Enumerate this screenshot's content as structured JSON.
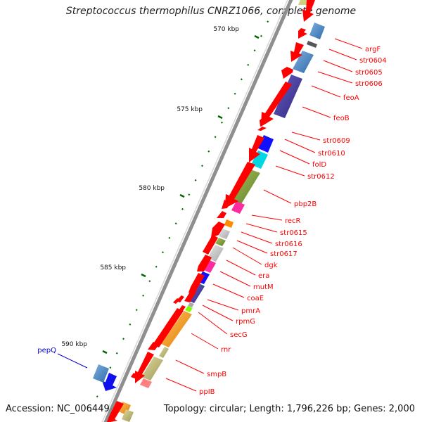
{
  "title": "Streptococcus thermophilus CNRZ1066, complete genome",
  "accession": "Accession: NC_006449",
  "summary": "Topology: circular; Length: 1,796,226 bp; Genes: 2,000",
  "colors": {
    "forward_gene": "#ff0000",
    "reverse_gene_label": "#0000cc",
    "label_line": "#ff0000",
    "backbone": "#999999",
    "tick": "#006600"
  },
  "ruler": [
    {
      "kbp": 570,
      "label": "570 kbp"
    },
    {
      "kbp": 575,
      "label": "575 kbp"
    },
    {
      "kbp": 580,
      "label": "580 kbp"
    },
    {
      "kbp": 585,
      "label": "585 kbp"
    },
    {
      "kbp": 590,
      "label": "590 kbp"
    }
  ],
  "genes": [
    {
      "name": "argF",
      "color": "#ff2020"
    },
    {
      "name": "str0604",
      "color": "#ff2020"
    },
    {
      "name": "str0605",
      "color": "#ff2020"
    },
    {
      "name": "str0606",
      "color": "#ff2020"
    },
    {
      "name": "feoA",
      "color": "#ff2020"
    },
    {
      "name": "feoB",
      "color": "#ff2020"
    },
    {
      "name": "str0609",
      "color": "#ff2020"
    },
    {
      "name": "str0610",
      "color": "#ff2020"
    },
    {
      "name": "folD",
      "color": "#ff2020"
    },
    {
      "name": "str0612",
      "color": "#ff2020"
    },
    {
      "name": "pbp2B",
      "color": "#ff2020"
    },
    {
      "name": "recR",
      "color": "#ff2020"
    },
    {
      "name": "str0615",
      "color": "#ff2020"
    },
    {
      "name": "str0616",
      "color": "#ff2020"
    },
    {
      "name": "str0617",
      "color": "#ff2020"
    },
    {
      "name": "dgk",
      "color": "#ff2020"
    },
    {
      "name": "era",
      "color": "#ff2020"
    },
    {
      "name": "mutM",
      "color": "#ff2020"
    },
    {
      "name": "coaE",
      "color": "#ff2020"
    },
    {
      "name": "pmrA",
      "color": "#ff2020"
    },
    {
      "name": "rpmG",
      "color": "#ff2020"
    },
    {
      "name": "secG",
      "color": "#ff2020"
    },
    {
      "name": "rnr",
      "color": "#ff2020"
    },
    {
      "name": "smpB",
      "color": "#ff2020"
    },
    {
      "name": "ppIB",
      "color": "#ff2020"
    }
  ],
  "reverse_genes": [
    {
      "name": "pepQ",
      "color": "#0000cc"
    }
  ]
}
